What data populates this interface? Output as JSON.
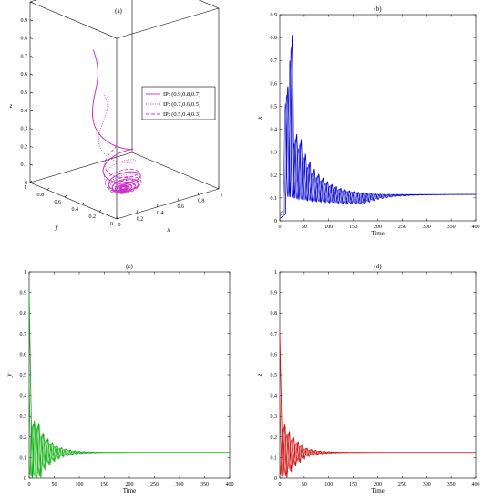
{
  "chart_data": [
    {
      "panel": "(a)",
      "type": "line3d",
      "title": "(a)",
      "xlabel": "x",
      "ylabel": "y",
      "zlabel": "z",
      "xlim": [
        0,
        1
      ],
      "ylim": [
        0,
        1
      ],
      "zlim": [
        0,
        1
      ],
      "xticks": [
        "0",
        "0.2",
        "0.4",
        "0.6",
        "0.8",
        "1"
      ],
      "yticks": [
        "0",
        "0.2",
        "0.4",
        "0.6",
        "0.8",
        "1"
      ],
      "zticks": [
        "0",
        "0.1",
        "0.2",
        "0.3",
        "0.4",
        "0.5",
        "0.6",
        "0.7",
        "0.8",
        "0.9",
        "1"
      ],
      "color": "#cc33cc",
      "equilibrium": {
        "x": 0.12,
        "y": 0.12,
        "z": 0.12
      },
      "series": [
        {
          "name": "IP: (0.9,0.8,0.7)",
          "style": "solid",
          "start": {
            "x": 0.9,
            "y": 0.8,
            "z": 0.7
          }
        },
        {
          "name": "IP: (0.7,0.6,0.5)",
          "style": "dotted",
          "start": {
            "x": 0.7,
            "y": 0.6,
            "z": 0.5
          }
        },
        {
          "name": "IP: (0.5,0.4,0.3)",
          "style": "dashed",
          "start": {
            "x": 0.5,
            "y": 0.4,
            "z": 0.3
          }
        }
      ]
    },
    {
      "panel": "(b)",
      "type": "line",
      "title": "(b)",
      "xlabel": "Time",
      "ylabel": "x",
      "xlim": [
        0,
        400
      ],
      "ylim": [
        0,
        0.9
      ],
      "xticks": [
        "0",
        "50",
        "100",
        "150",
        "200",
        "250",
        "300",
        "350",
        "400"
      ],
      "yticks": [
        "0",
        "0.1",
        "0.2",
        "0.3",
        "0.4",
        "0.5",
        "0.6",
        "0.7",
        "0.8",
        "0.9"
      ],
      "color": "#0000cc",
      "steady_state": 0.115,
      "peaks": [
        0.55,
        0.78,
        0.35,
        0.33,
        0.27,
        0.24,
        0.21,
        0.19
      ],
      "period": 9
    },
    {
      "panel": "(c)",
      "type": "line",
      "title": "(c)",
      "xlabel": "Time",
      "ylabel": "y",
      "xlim": [
        0,
        400
      ],
      "ylim": [
        0,
        1
      ],
      "xticks": [
        "0",
        "50",
        "100",
        "150",
        "200",
        "250",
        "300",
        "350",
        "400"
      ],
      "yticks": [
        "0",
        "0.1",
        "0.2",
        "0.3",
        "0.4",
        "0.5",
        "0.6",
        "0.7",
        "0.8",
        "0.9",
        "1"
      ],
      "color": "#00aa00",
      "steady_state": 0.125,
      "initial": [
        0.9,
        0.8,
        0.6,
        0.5
      ],
      "peaks": [
        0.3,
        0.3,
        0.25,
        0.22,
        0.2,
        0.18
      ],
      "period": 9
    },
    {
      "panel": "(d)",
      "type": "line",
      "title": "(d)",
      "xlabel": "Time",
      "ylabel": "z",
      "xlim": [
        0,
        400
      ],
      "ylim": [
        0,
        1
      ],
      "xticks": [
        "0",
        "50",
        "100",
        "150",
        "200",
        "250",
        "300",
        "350",
        "400"
      ],
      "yticks": [
        "0",
        "0.1",
        "0.2",
        "0.3",
        "0.4",
        "0.5",
        "0.6",
        "0.7",
        "0.8",
        "0.9",
        "1"
      ],
      "color": "#cc0000",
      "steady_state": 0.125,
      "initial": [
        0.7,
        0.6,
        0.5,
        0.4
      ],
      "peaks": [
        0.28,
        0.25,
        0.22,
        0.2,
        0.18,
        0.16
      ],
      "period": 9
    }
  ]
}
